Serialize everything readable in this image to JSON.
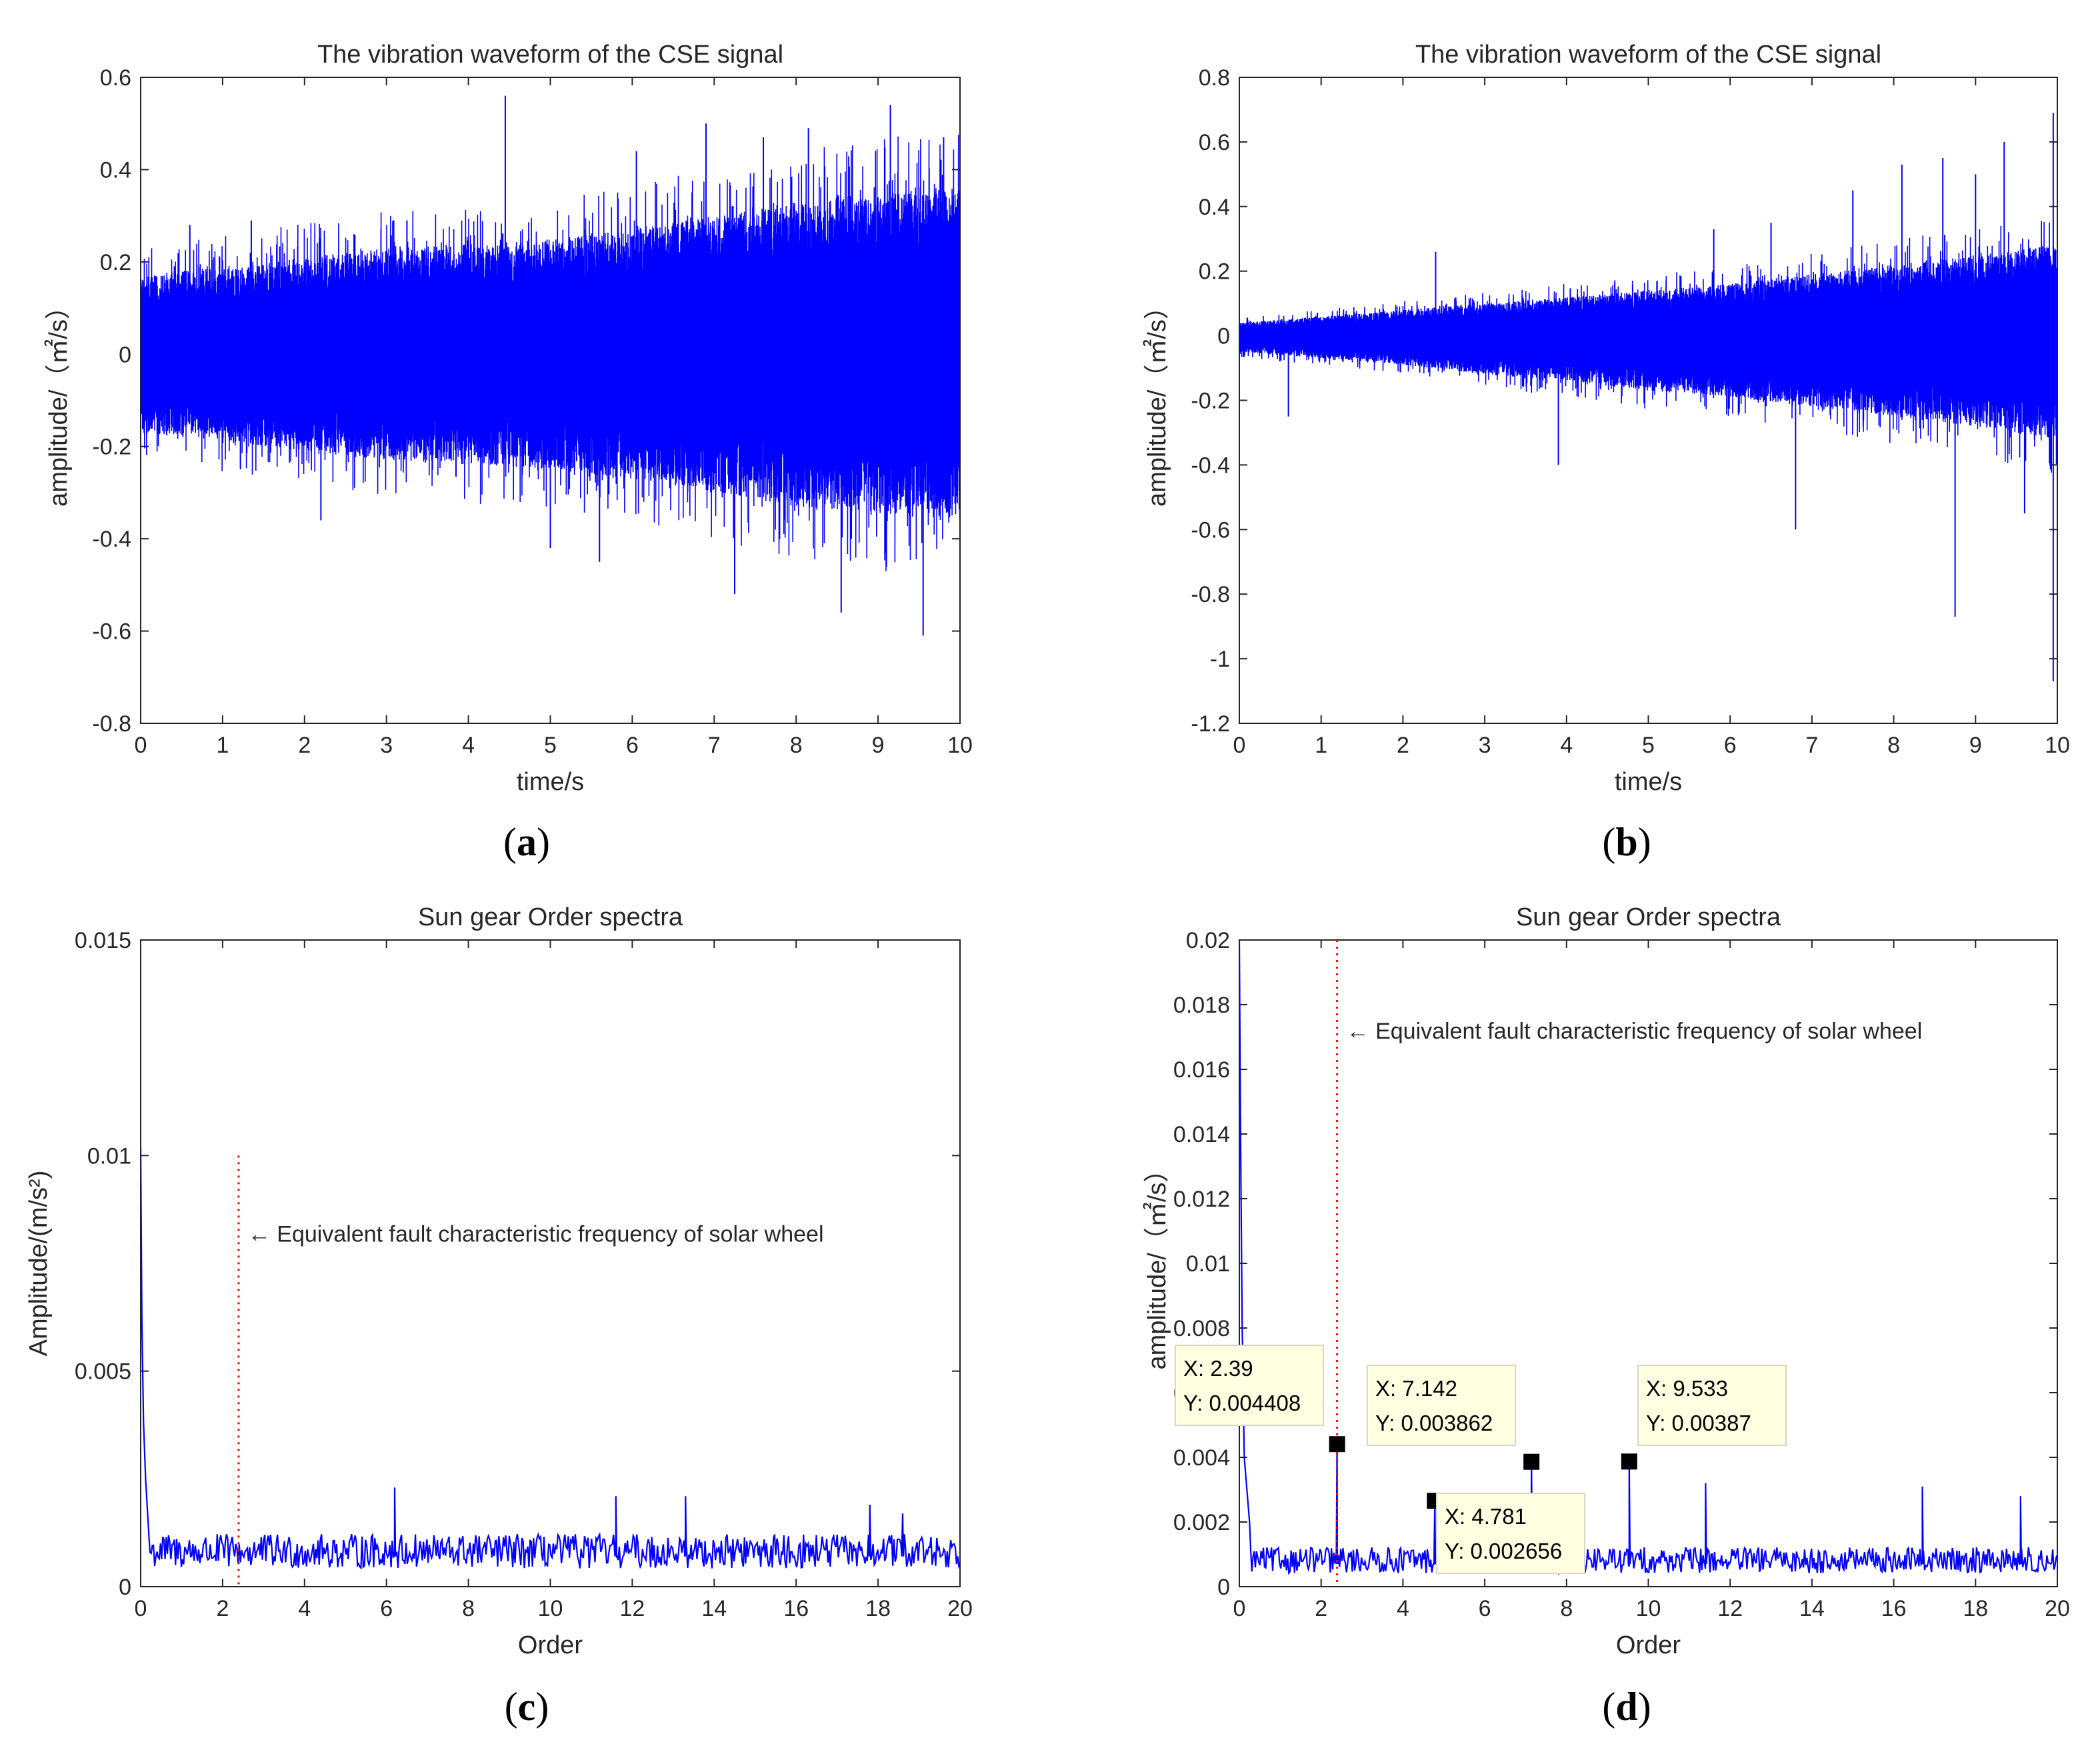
{
  "chart_data": [
    {
      "id": "a",
      "type": "line",
      "caption": "a",
      "title": "The vibration waveform of the CSE signal",
      "xlabel": "time/s",
      "ylabel": "amplitude/（㎡/s）",
      "xlim": [
        0,
        10
      ],
      "ylim": [
        -0.8,
        0.6
      ],
      "xticks": [
        0,
        1,
        2,
        3,
        4,
        5,
        6,
        7,
        8,
        9,
        10
      ],
      "yticks": [
        -0.8,
        -0.6,
        -0.4,
        -0.2,
        0,
        0.2,
        0.4,
        0.6
      ],
      "color": "#0000ff",
      "envelope": {
        "x": [
          0,
          1,
          2,
          3,
          4,
          5,
          6,
          7,
          8,
          9,
          10
        ],
        "upper": [
          0.17,
          0.19,
          0.21,
          0.23,
          0.24,
          0.25,
          0.27,
          0.3,
          0.33,
          0.35,
          0.36
        ],
        "lower": [
          -0.17,
          -0.19,
          -0.21,
          -0.23,
          -0.24,
          -0.25,
          -0.27,
          -0.3,
          -0.33,
          -0.35,
          -0.36
        ]
      },
      "peaks": [
        [
          0.6,
          0.28
        ],
        [
          1.35,
          0.29
        ],
        [
          2.2,
          -0.36
        ],
        [
          3.25,
          0.29
        ],
        [
          4.45,
          0.56
        ],
        [
          5.0,
          -0.42
        ],
        [
          5.6,
          -0.45
        ],
        [
          6.05,
          0.44
        ],
        [
          6.9,
          0.5
        ],
        [
          7.25,
          -0.52
        ],
        [
          7.6,
          0.47
        ],
        [
          8.15,
          0.49
        ],
        [
          8.55,
          -0.56
        ],
        [
          9.15,
          0.54
        ],
        [
          9.55,
          -0.61
        ],
        [
          9.8,
          0.47
        ]
      ]
    },
    {
      "id": "b",
      "type": "line",
      "caption": "b",
      "title": "The vibration waveform of the CSE signal",
      "xlabel": "time/s",
      "ylabel": "amplitude/（㎡/s）",
      "xlim": [
        0,
        10
      ],
      "ylim": [
        -1.2,
        0.8
      ],
      "xticks": [
        0,
        1,
        2,
        3,
        4,
        5,
        6,
        7,
        8,
        9,
        10
      ],
      "yticks": [
        -1.2,
        -1,
        -0.8,
        -0.6,
        -0.4,
        -0.2,
        0,
        0.2,
        0.4,
        0.6,
        0.8
      ],
      "color": "#0000ff",
      "envelope": {
        "x": [
          0,
          1,
          2,
          3,
          4,
          5,
          6,
          7,
          8,
          9,
          10
        ],
        "upper": [
          0.04,
          0.06,
          0.08,
          0.1,
          0.12,
          0.14,
          0.16,
          0.19,
          0.22,
          0.25,
          0.28
        ],
        "lower": [
          -0.05,
          -0.07,
          -0.09,
          -0.12,
          -0.14,
          -0.17,
          -0.19,
          -0.22,
          -0.25,
          -0.28,
          -0.32
        ]
      },
      "peaks": [
        [
          0.6,
          -0.25
        ],
        [
          2.4,
          0.26
        ],
        [
          3.9,
          -0.4
        ],
        [
          5.8,
          0.33
        ],
        [
          6.5,
          0.35
        ],
        [
          6.8,
          -0.6
        ],
        [
          7.5,
          0.45
        ],
        [
          8.1,
          0.53
        ],
        [
          8.6,
          0.55
        ],
        [
          8.75,
          -0.87
        ],
        [
          9.0,
          0.5
        ],
        [
          9.35,
          0.6
        ],
        [
          9.6,
          -0.55
        ],
        [
          9.95,
          0.69
        ],
        [
          9.95,
          -1.07
        ]
      ]
    },
    {
      "id": "c",
      "type": "line",
      "caption": "c",
      "title": "Sun gear Order spectra",
      "xlabel": "Order",
      "ylabel": "Amplitude/(m/s²)",
      "xlim": [
        0,
        20
      ],
      "ylim": [
        0,
        0.015
      ],
      "xticks": [
        0,
        2,
        4,
        6,
        8,
        10,
        12,
        14,
        16,
        18,
        20
      ],
      "yticks": [
        0,
        0.005,
        0.01,
        0.015
      ],
      "color": "#0000ff",
      "baseline": 0.0007,
      "noise": 0.0005,
      "head": [
        [
          0,
          0.0102
        ],
        [
          0.03,
          0.0062
        ],
        [
          0.07,
          0.0038
        ],
        [
          0.12,
          0.0025
        ],
        [
          0.2,
          0.0012
        ]
      ],
      "peaks": [
        [
          6.2,
          0.0023
        ],
        [
          11.6,
          0.0021
        ],
        [
          13.3,
          0.0021
        ],
        [
          17.8,
          0.0019
        ],
        [
          18.6,
          0.0017
        ]
      ],
      "fault_line": {
        "x": 2.39,
        "y_top": 0.01,
        "label": "← Equivalent fault characteristic frequency of solar wheel"
      }
    },
    {
      "id": "d",
      "type": "line",
      "caption": "d",
      "title": "Sun gear Order spectra",
      "xlabel": "Order",
      "ylabel": "amplitude/（㎡/s）",
      "xlim": [
        0,
        20
      ],
      "ylim": [
        0,
        0.02
      ],
      "xticks": [
        0,
        2,
        4,
        6,
        8,
        10,
        12,
        14,
        16,
        18,
        20
      ],
      "yticks": [
        0,
        0.002,
        0.004,
        0.006,
        0.008,
        0.01,
        0.012,
        0.014,
        0.016,
        0.018,
        0.02
      ],
      "color": "#0000ff",
      "baseline": 0.0007,
      "noise": 0.0005,
      "head": [
        [
          0,
          0.02
        ],
        [
          0.03,
          0.014
        ],
        [
          0.07,
          0.008
        ],
        [
          0.12,
          0.004
        ],
        [
          0.25,
          0.002
        ]
      ],
      "peaks": [
        [
          2.39,
          0.004408
        ],
        [
          4.781,
          0.002656
        ],
        [
          7.142,
          0.003862
        ],
        [
          9.533,
          0.00387
        ],
        [
          11.4,
          0.0032
        ],
        [
          16.7,
          0.0031
        ],
        [
          19.1,
          0.0028
        ]
      ],
      "fault_line": {
        "x": 2.39,
        "y_top": 0.02,
        "label": "← Equivalent fault characteristic frequency of solar wheel"
      },
      "datatips": [
        {
          "x": 2.39,
          "y": 0.004408,
          "line1": "X: 2.39",
          "line2": "Y: 0.004408"
        },
        {
          "x": 4.781,
          "y": 0.002656,
          "line1": "X: 4.781",
          "line2": "Y: 0.002656"
        },
        {
          "x": 7.142,
          "y": 0.003862,
          "line1": "X: 7.142",
          "line2": "Y: 0.003862"
        },
        {
          "x": 9.533,
          "y": 0.00387,
          "line1": "X: 9.533",
          "line2": "Y: 0.00387"
        }
      ]
    }
  ]
}
